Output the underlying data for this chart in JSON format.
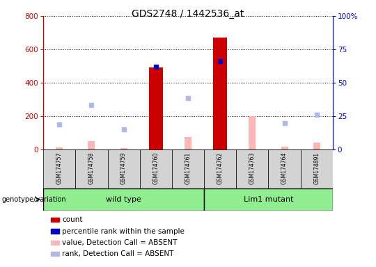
{
  "title": "GDS2748 / 1442536_at",
  "samples": [
    "GSM174757",
    "GSM174758",
    "GSM174759",
    "GSM174760",
    "GSM174761",
    "GSM174762",
    "GSM174763",
    "GSM174764",
    "GSM174891"
  ],
  "count_values": [
    null,
    null,
    null,
    490,
    null,
    670,
    null,
    null,
    null
  ],
  "percentile_values": [
    null,
    null,
    null,
    62,
    null,
    66,
    null,
    null,
    null
  ],
  "absent_value": [
    12,
    50,
    8,
    null,
    75,
    null,
    200,
    15,
    40
  ],
  "absent_rank": [
    150,
    265,
    120,
    null,
    310,
    null,
    null,
    160,
    210
  ],
  "groups": [
    {
      "label": "wild type",
      "start": 0,
      "end": 5
    },
    {
      "label": "Lim1 mutant",
      "start": 5,
      "end": 9
    }
  ],
  "group_color": "#90ee90",
  "ylim_left": [
    0,
    800
  ],
  "ylim_right": [
    0,
    100
  ],
  "yticks_left": [
    0,
    200,
    400,
    600,
    800
  ],
  "yticks_right": [
    0,
    25,
    50,
    75,
    100
  ],
  "yticklabels_right": [
    "0",
    "25",
    "50",
    "75",
    "100%"
  ],
  "color_count": "#cc0000",
  "color_percentile": "#0000cc",
  "color_absent_val": "#ffb6b6",
  "color_absent_rank": "#b0b8e8",
  "legend_items": [
    {
      "color": "#cc0000",
      "label": "count"
    },
    {
      "color": "#0000cc",
      "label": "percentile rank within the sample"
    },
    {
      "color": "#ffb6b6",
      "label": "value, Detection Call = ABSENT"
    },
    {
      "color": "#b0b8e8",
      "label": "rank, Detection Call = ABSENT"
    }
  ]
}
